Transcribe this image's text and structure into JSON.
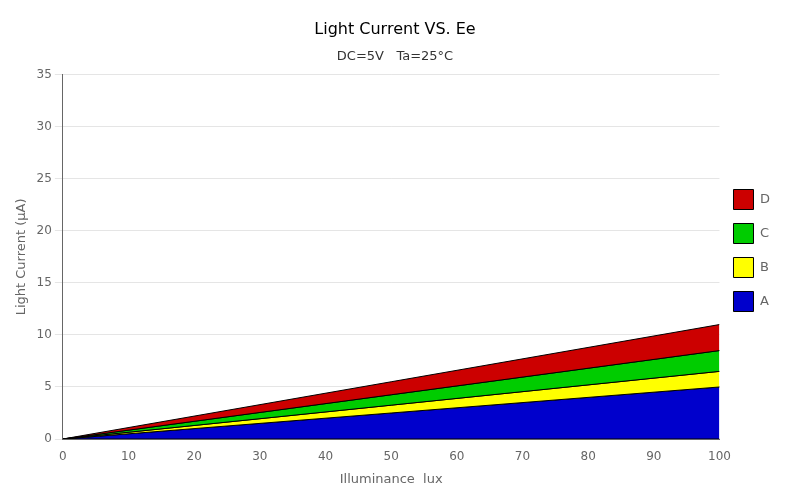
{
  "chart_data": {
    "type": "area",
    "title": "Light Current VS. Ee",
    "subtitle": "DC=5V   Ta=25°C",
    "xlabel": "Illuminance  lux",
    "ylabel": "Light Current (μA)",
    "x": [
      0,
      100
    ],
    "series": [
      {
        "name": "D",
        "color": "#CC0000",
        "lower": [
          0,
          8.5
        ],
        "values": [
          0,
          11
        ]
      },
      {
        "name": "C",
        "color": "#00CC00",
        "lower": [
          0,
          6.5
        ],
        "values": [
          0,
          8.5
        ]
      },
      {
        "name": "B",
        "color": "#FFFF00",
        "lower": [
          0,
          5
        ],
        "values": [
          0,
          6.5
        ]
      },
      {
        "name": "A",
        "color": "#0000CC",
        "lower": [
          0,
          0
        ],
        "values": [
          0,
          5
        ]
      }
    ],
    "xlim": [
      0,
      100
    ],
    "xticks": [
      0,
      10,
      20,
      30,
      40,
      50,
      60,
      70,
      80,
      90,
      100
    ],
    "ylim": [
      0,
      35
    ],
    "yticks": [
      0,
      5,
      10,
      15,
      20,
      25,
      30,
      35
    ],
    "grid": "y",
    "legend": "right"
  }
}
